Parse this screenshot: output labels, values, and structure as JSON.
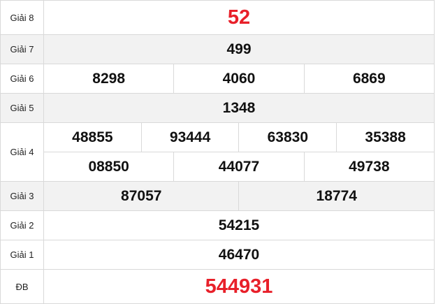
{
  "colors": {
    "special": "#e8202a",
    "alt_row": "#f2f2f2",
    "border": "#d9d9d9"
  },
  "rows": {
    "g8": {
      "label": "Giải 8",
      "values": [
        "52"
      ]
    },
    "g7": {
      "label": "Giải 7",
      "values": [
        "499"
      ]
    },
    "g6": {
      "label": "Giải 6",
      "values": [
        "8298",
        "4060",
        "6869"
      ]
    },
    "g5": {
      "label": "Giải 5",
      "values": [
        "1348"
      ]
    },
    "g4": {
      "label": "Giải 4",
      "values": [
        "48855",
        "93444",
        "63830",
        "35388",
        "08850",
        "44077",
        "49738"
      ]
    },
    "g3": {
      "label": "Giải 3",
      "values": [
        "87057",
        "18774"
      ]
    },
    "g2": {
      "label": "Giải 2",
      "values": [
        "54215"
      ]
    },
    "g1": {
      "label": "Giải 1",
      "values": [
        "46470"
      ]
    },
    "db": {
      "label": "ĐB",
      "values": [
        "544931"
      ]
    }
  }
}
